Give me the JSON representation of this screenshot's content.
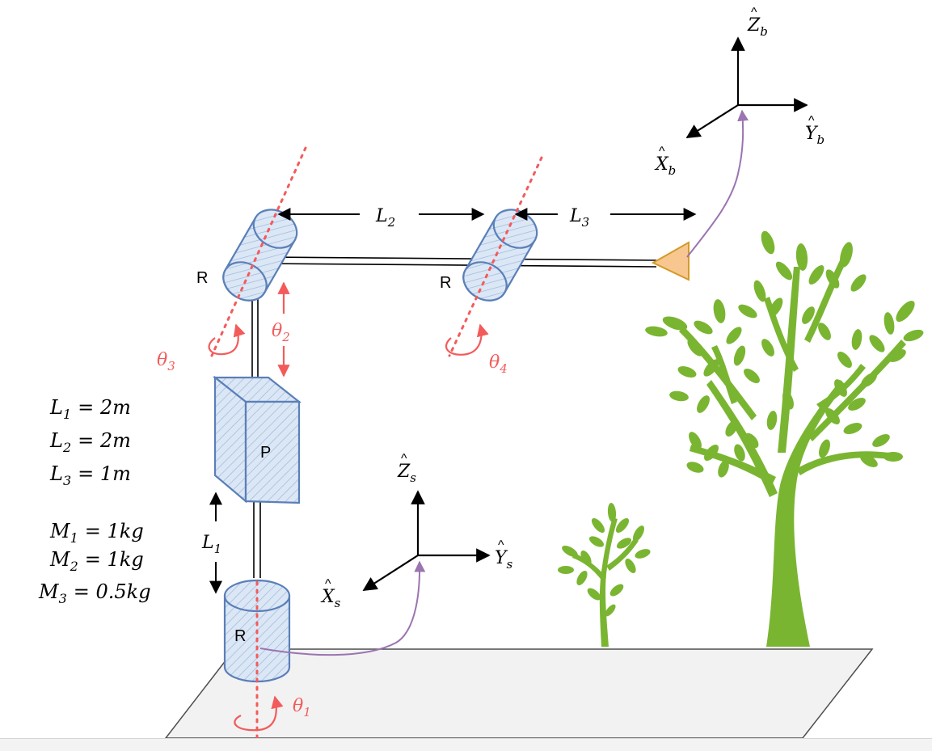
{
  "joints": {
    "base": {
      "type": "R",
      "angle": "θ",
      "angle_sub": "1"
    },
    "shoulder": {
      "type": "R",
      "angle": "θ",
      "angle_sub": "3"
    },
    "elbow": {
      "type": "R",
      "angle": "θ",
      "angle_sub": "4"
    },
    "prismatic": {
      "type": "P",
      "var": "θ",
      "var_sub": "2"
    }
  },
  "dimensions": {
    "L1": {
      "sym": "L",
      "sub": "1"
    },
    "L2": {
      "sym": "L",
      "sub": "2"
    },
    "L3": {
      "sym": "L",
      "sub": "3"
    }
  },
  "params": [
    {
      "sym": "L",
      "sub": "1",
      "rhs": "= 2m"
    },
    {
      "sym": "L",
      "sub": "2",
      "rhs": "= 2m"
    },
    {
      "sym": "L",
      "sub": "3",
      "rhs": "= 1m"
    },
    {
      "sym": "M",
      "sub": "1",
      "rhs": "= 1kg"
    },
    {
      "sym": "M",
      "sub": "2",
      "rhs": "= 1kg"
    },
    {
      "sym": "M",
      "sub": "3",
      "rhs": "= 0.5kg"
    }
  ],
  "frames": {
    "space": {
      "z": "Z",
      "y": "Y",
      "x": "X",
      "sub": "s"
    },
    "body": {
      "z": "Z",
      "y": "Y",
      "x": "X",
      "sub": "b"
    }
  },
  "hat": "^",
  "colors": {
    "link_fill": "#dbe7f5",
    "link_stroke": "#5b7fb8",
    "axis_red": "#f35b5b",
    "frame_arrow": "#9b74b0",
    "tool_fill": "#f7c78f",
    "tool_stroke": "#d59a2a",
    "ground_fill": "#f2f2f2",
    "tree_green": "#7ab532"
  }
}
